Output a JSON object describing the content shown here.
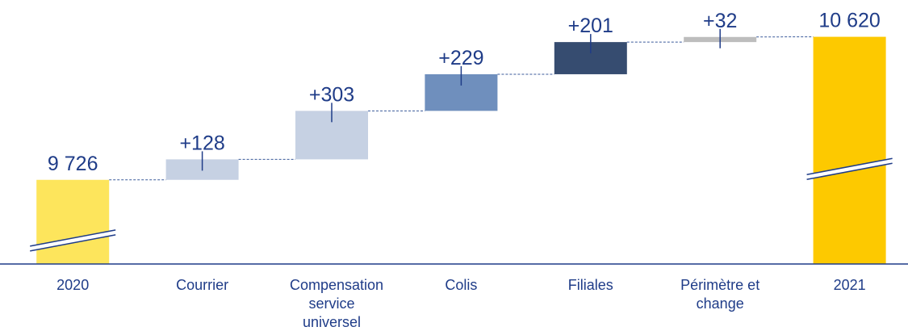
{
  "chart_data": {
    "type": "waterfall",
    "categories": [
      "2020",
      "Courrier",
      "Compensation service universel",
      "Colis",
      "Filiales",
      "Périmètre et change",
      "2021"
    ],
    "values": [
      9726,
      128,
      303,
      229,
      201,
      32,
      10620
    ],
    "value_labels": [
      "9 726",
      "+128",
      "+303",
      "+229",
      "+201",
      "+32",
      "10 620"
    ],
    "colors": [
      "#fde55c",
      "#c6d1e3",
      "#c6d1e3",
      "#6f8fbd",
      "#364c70",
      "#bdbdbd",
      "#fdc900"
    ],
    "ylim": [
      9200,
      10850
    ]
  }
}
